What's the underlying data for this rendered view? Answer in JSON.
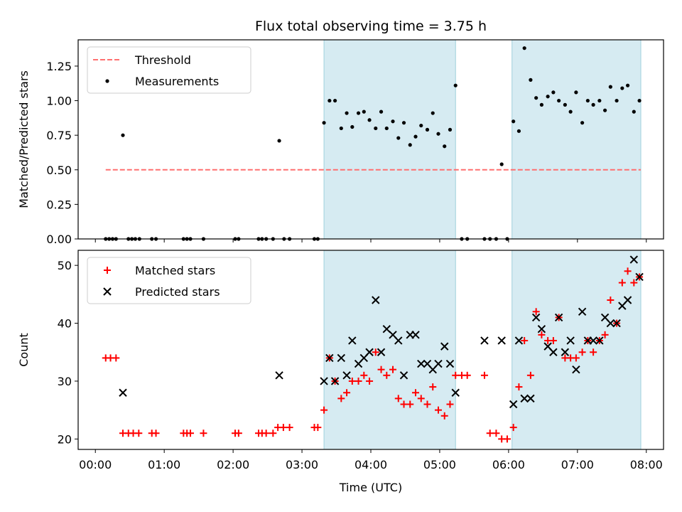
{
  "chart_data": [
    {
      "type": "scatter",
      "title": "Flux total observing time = 3.75 h",
      "xlabel": "",
      "ylabel": "Matched/Predicted stars",
      "xlim": [
        -0.25,
        8.25
      ],
      "ylim": [
        0,
        1.44
      ],
      "yticks": [
        0.0,
        0.25,
        0.5,
        0.75,
        1.0,
        1.25
      ],
      "ytick_labels": [
        "0.00",
        "0.25",
        "0.50",
        "0.75",
        "1.00",
        "1.25"
      ],
      "legend": [
        "Threshold",
        "Measurements"
      ],
      "legend_position": "top-left",
      "shaded_ranges_hours": [
        [
          3.32,
          5.23
        ],
        [
          6.05,
          7.92
        ]
      ],
      "threshold": {
        "name": "Threshold",
        "y": 0.5,
        "x_range": [
          0.15,
          7.92
        ],
        "color": "#ff7070"
      },
      "series": [
        {
          "name": "Measurements",
          "x": [
            0.15,
            0.2,
            0.25,
            0.3,
            0.4,
            0.48,
            0.53,
            0.58,
            0.64,
            0.82,
            0.88,
            1.28,
            1.33,
            1.38,
            1.57,
            2.03,
            2.08,
            2.37,
            2.42,
            2.48,
            2.58,
            2.67,
            2.74,
            2.82,
            3.18,
            3.23,
            3.32,
            3.4,
            3.48,
            3.57,
            3.65,
            3.73,
            3.82,
            3.9,
            3.98,
            4.07,
            4.15,
            4.23,
            4.32,
            4.4,
            4.48,
            4.57,
            4.65,
            4.73,
            4.82,
            4.9,
            4.98,
            5.07,
            5.15,
            5.23,
            5.32,
            5.4,
            5.65,
            5.73,
            5.82,
            5.9,
            5.98,
            6.07,
            6.15,
            6.23,
            6.32,
            6.4,
            6.48,
            6.57,
            6.65,
            6.73,
            6.82,
            6.9,
            6.98,
            7.07,
            7.15,
            7.23,
            7.32,
            7.4,
            7.48,
            7.57,
            7.65,
            7.73,
            7.82,
            7.9
          ],
          "y": [
            0,
            0,
            0,
            0,
            0.75,
            0,
            0,
            0,
            0,
            0,
            0,
            0,
            0,
            0,
            0,
            0,
            0,
            0,
            0,
            0,
            0,
            0.71,
            0,
            0,
            0,
            0,
            0.84,
            1.0,
            1.0,
            0.8,
            0.91,
            0.81,
            0.91,
            0.92,
            0.86,
            0.8,
            0.92,
            0.8,
            0.85,
            0.73,
            0.84,
            0.68,
            0.74,
            0.82,
            0.79,
            0.91,
            0.76,
            0.67,
            0.79,
            1.11,
            0,
            0,
            0,
            0,
            0,
            0.54,
            0,
            0.85,
            0.78,
            1.38,
            1.15,
            1.02,
            0.97,
            1.03,
            1.06,
            1.0,
            0.97,
            0.92,
            1.06,
            0.84,
            1.0,
            0.97,
            1.0,
            0.93,
            1.1,
            1.0,
            1.09,
            1.11,
            0.92,
            1.0
          ],
          "color": "#000000"
        }
      ]
    },
    {
      "type": "scatter",
      "title": "",
      "xlabel": "Time (UTC)",
      "ylabel": "Count",
      "xlim": [
        -0.25,
        8.25
      ],
      "ylim": [
        18.2,
        52.6
      ],
      "yticks": [
        20,
        30,
        40,
        50
      ],
      "ytick_labels": [
        "20",
        "30",
        "40",
        "50"
      ],
      "xticks": [
        0,
        1,
        2,
        3,
        4,
        5,
        6,
        7,
        8
      ],
      "xtick_labels": [
        "00:00",
        "01:00",
        "02:00",
        "03:00",
        "04:00",
        "05:00",
        "06:00",
        "07:00",
        "08:00"
      ],
      "legend": [
        "Matched stars",
        "Predicted stars"
      ],
      "legend_position": "top-left",
      "shaded_ranges_hours": [
        [
          3.32,
          5.23
        ],
        [
          6.05,
          7.92
        ]
      ],
      "series": [
        {
          "name": "Matched stars",
          "marker": "plus",
          "color": "#ff0000",
          "x": [
            0.15,
            0.22,
            0.3,
            0.4,
            0.48,
            0.55,
            0.63,
            0.82,
            0.88,
            1.28,
            1.33,
            1.38,
            1.57,
            2.03,
            2.08,
            2.37,
            2.42,
            2.48,
            2.58,
            2.65,
            2.73,
            2.82,
            3.18,
            3.23,
            3.32,
            3.4,
            3.48,
            3.57,
            3.65,
            3.73,
            3.82,
            3.9,
            3.98,
            4.07,
            4.15,
            4.23,
            4.32,
            4.4,
            4.48,
            4.57,
            4.65,
            4.73,
            4.82,
            4.9,
            4.98,
            5.07,
            5.15,
            5.23,
            5.32,
            5.4,
            5.65,
            5.73,
            5.82,
            5.9,
            5.98,
            6.07,
            6.15,
            6.23,
            6.32,
            6.4,
            6.48,
            6.57,
            6.65,
            6.73,
            6.82,
            6.9,
            6.98,
            7.07,
            7.15,
            7.23,
            7.32,
            7.4,
            7.48,
            7.57,
            7.65,
            7.73,
            7.82,
            7.9
          ],
          "y": [
            34,
            34,
            34,
            21,
            21,
            21,
            21,
            21,
            21,
            21,
            21,
            21,
            21,
            21,
            21,
            21,
            21,
            21,
            21,
            22,
            22,
            22,
            22,
            22,
            25,
            34,
            30,
            27,
            28,
            30,
            30,
            31,
            30,
            35,
            32,
            31,
            32,
            27,
            26,
            26,
            28,
            27,
            26,
            29,
            25,
            24,
            26,
            31,
            31,
            31,
            31,
            21,
            21,
            20,
            20,
            22,
            29,
            37,
            31,
            42,
            38,
            37,
            37,
            41,
            34,
            34,
            34,
            35,
            37,
            35,
            37,
            38,
            44,
            40,
            47,
            49,
            47,
            48
          ]
        },
        {
          "name": "Predicted stars",
          "marker": "x",
          "color": "#000000",
          "x": [
            0.4,
            2.67,
            3.32,
            3.4,
            3.48,
            3.57,
            3.65,
            3.73,
            3.82,
            3.9,
            3.98,
            4.07,
            4.15,
            4.23,
            4.32,
            4.4,
            4.48,
            4.57,
            4.65,
            4.73,
            4.82,
            4.9,
            4.98,
            5.07,
            5.15,
            5.23,
            5.65,
            5.9,
            6.07,
            6.15,
            6.23,
            6.32,
            6.4,
            6.48,
            6.57,
            6.65,
            6.73,
            6.82,
            6.9,
            6.98,
            7.07,
            7.15,
            7.23,
            7.32,
            7.4,
            7.48,
            7.57,
            7.65,
            7.73,
            7.82,
            7.9
          ],
          "y": [
            28,
            31,
            30,
            34,
            30,
            34,
            31,
            37,
            33,
            34,
            35,
            44,
            35,
            39,
            38,
            37,
            31,
            38,
            38,
            33,
            33,
            32,
            33,
            36,
            33,
            28,
            37,
            37,
            26,
            37,
            27,
            27,
            41,
            39,
            36,
            35,
            41,
            35,
            37,
            32,
            42,
            37,
            37,
            37,
            41,
            40,
            40,
            43,
            44,
            51,
            48
          ]
        }
      ]
    }
  ]
}
